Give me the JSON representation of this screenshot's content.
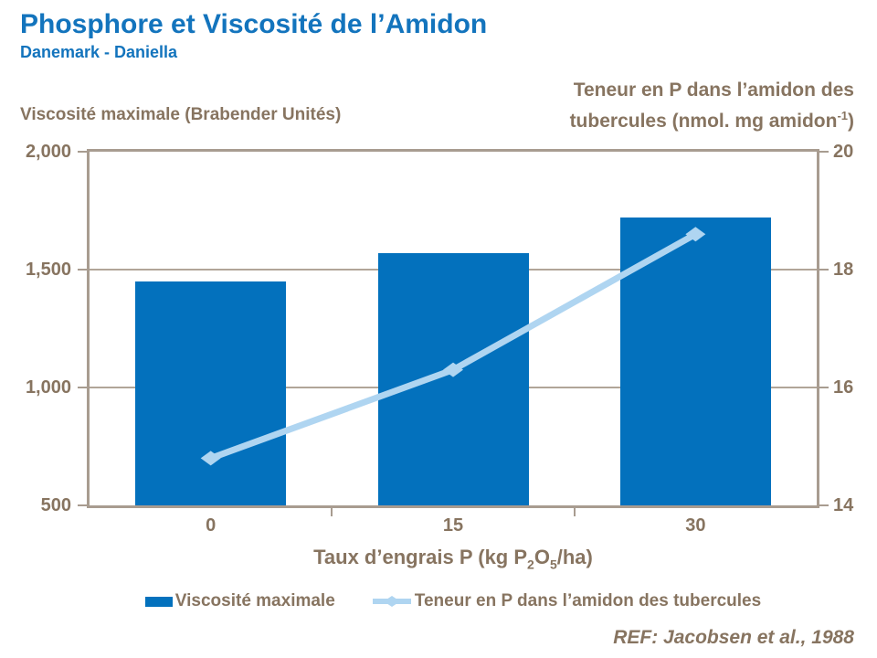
{
  "header": {
    "title": "Phosphore et Viscosité de l’Amidon",
    "subtitle": "Danemark - Daniella"
  },
  "colors": {
    "accent": "#1374BD",
    "bar": "#0371BD",
    "line": "#AFD5F1",
    "tan": "#877460",
    "axis": "#A89C90",
    "grid": "#B1A598"
  },
  "chart_data": {
    "type": "bar+line combo, dual y-axes",
    "categories": [
      "0",
      "15",
      "30"
    ],
    "series": [
      {
        "name": "Viscosité maximale",
        "type": "bar",
        "axis": "left",
        "color": "#0371BD",
        "values": [
          1450,
          1570,
          1720
        ]
      },
      {
        "name": "Teneur en P dans l’amidon des tubercules",
        "type": "line",
        "axis": "right",
        "color": "#AFD5F1",
        "marker": "diamond",
        "values": [
          14.8,
          16.3,
          18.6
        ]
      }
    ],
    "left_axis": {
      "title": "Viscosité maximale (Brabender Unités)",
      "tick_labels": [
        "500",
        "1,000",
        "1,500",
        "2,000"
      ],
      "tick_values": [
        500,
        1000,
        1500,
        2000
      ],
      "range": [
        500,
        2000
      ]
    },
    "right_axis": {
      "title_line1": "Teneur en P dans l’amidon des",
      "title_line2": "tubercules (nmol. mg amidon",
      "title_sup": "-1",
      "title_close": ")",
      "tick_labels": [
        "14",
        "16",
        "18",
        "20"
      ],
      "tick_values": [
        14,
        16,
        18,
        20
      ],
      "range": [
        14,
        20
      ]
    },
    "x_axis": {
      "title_pre": "Taux d’engrais P (kg P",
      "title_sub1": "2",
      "title_mid": "O",
      "title_sub2": "5",
      "title_post": "/ha)",
      "tick_labels": [
        "0",
        "15",
        "30"
      ]
    },
    "grid": "horizontal interior gridlines at left 1,000 / 1,500 (right 16 / 18)",
    "legend_position": "bottom center"
  },
  "legend": {
    "items": [
      {
        "label": "Viscosité maximale",
        "swatch": "bar-swatch"
      },
      {
        "label": "Teneur en P dans l’amidon des tubercules",
        "swatch": "line-diamond-swatch"
      }
    ]
  },
  "footer": {
    "reference": "REF: Jacobsen et al., 1988"
  }
}
